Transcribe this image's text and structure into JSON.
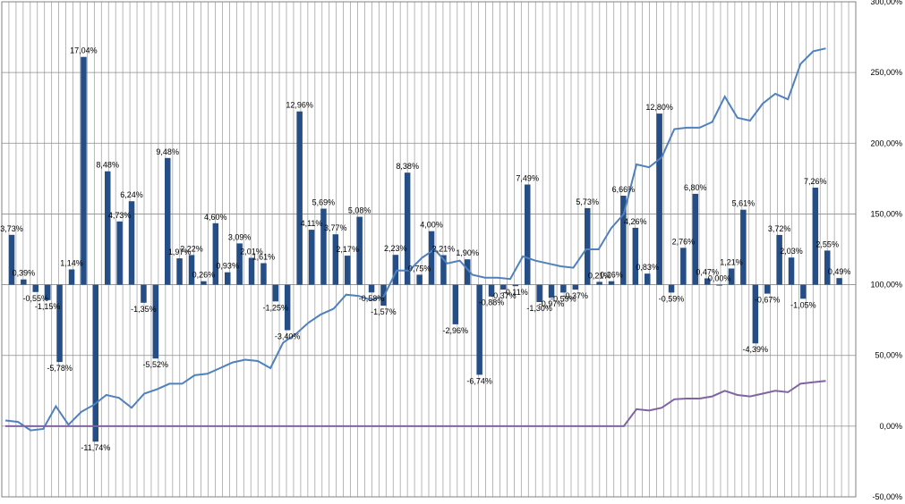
{
  "chart_data": {
    "type": "bar",
    "title": "",
    "xlabel": "",
    "ylabel": "",
    "grid": true,
    "ylim": [
      -50,
      300
    ],
    "yticks": [
      -50,
      0,
      50,
      100,
      150,
      200,
      250,
      300
    ],
    "ytick_labels": [
      "-50,00%",
      "0,00%",
      "50,00%",
      "100,00%",
      "150,00%",
      "200,00%",
      "250,00%",
      "300,00%"
    ],
    "y_axis_side": "right",
    "bar_color": "#254E87",
    "bar_baseline": 100,
    "series": [
      {
        "type": "bar",
        "values": [
          3.73,
          0.39,
          -0.55,
          -1.15,
          -5.78,
          1.14,
          17.04,
          -11.74,
          8.48,
          4.73,
          6.24,
          -1.35,
          -5.52,
          9.48,
          1.97,
          2.22,
          0.26,
          4.6,
          0.93,
          3.09,
          2.01,
          1.61,
          -1.25,
          -3.4,
          12.96,
          4.11,
          5.69,
          3.77,
          2.17,
          5.08,
          -0.58,
          -1.57,
          2.23,
          8.38,
          0.75,
          4.0,
          2.21,
          -2.96,
          1.9,
          -6.74,
          -0.88,
          -0.37,
          -0.11,
          7.49,
          -1.3,
          -0.97,
          -0.59,
          -0.37,
          5.73,
          0.21,
          0.26,
          6.66,
          4.26,
          0.83,
          12.8,
          -0.59,
          2.76,
          6.8,
          0.47,
          0.0,
          1.21,
          5.61,
          -4.39,
          -0.67,
          3.72,
          2.03,
          -1.05,
          7.26,
          2.55,
          0.49
        ],
        "labels": [
          "3,73%",
          "0,39%",
          "-0,55%",
          "-1,15%",
          "-5,78%",
          "1,14%",
          "17,04%",
          "-11,74%",
          "8,48%",
          "4,73%",
          "6,24%",
          "-1,35%",
          "-5,52%",
          "9,48%",
          "1,97%",
          "2,22%",
          "0,26%",
          "4,60%",
          "0,93%",
          "3,09%",
          "2,01%",
          "1,61%",
          "-1,25%",
          "-3,40%",
          "12,96%",
          "4,11%",
          "5,69%",
          "3,77%",
          "2,17%",
          "5,08%",
          "-0,58%",
          "-1,57%",
          "2,23%",
          "8,38%",
          "0,75%",
          "4,00%",
          "2,21%",
          "-2,96%",
          "1,90%",
          "-6,74%",
          "-0,88%",
          "-0,37%",
          "-0,11%",
          "7,49%",
          "-1,30%",
          "-0,97%",
          "-0,59%",
          "-0,37%",
          "5,73%",
          "0,21%",
          "0,26%",
          "6,66%",
          "4,26%",
          "0,83%",
          "12,80%",
          "-0,59%",
          "2,76%",
          "6,80%",
          "0,47%",
          "0,00%",
          "1,21%",
          "5,61%",
          "-4,39%",
          "-0,67%",
          "3,72%",
          "2,03%",
          "-1,05%",
          "7,26%",
          "2,55%",
          "0,49%"
        ]
      },
      {
        "type": "line",
        "color": "#4F81BD",
        "values": [
          4,
          3,
          -3,
          -2,
          14,
          1,
          10,
          15,
          22,
          20,
          13,
          23,
          26,
          30,
          30,
          36,
          37,
          41,
          45,
          47,
          46,
          41,
          59,
          65,
          73,
          79,
          83,
          93,
          92,
          89,
          92,
          110,
          110,
          119,
          125,
          115,
          117,
          107,
          105,
          105,
          104,
          120,
          117,
          115,
          113,
          112,
          125,
          125,
          140,
          150,
          185,
          183,
          190,
          210,
          211,
          211,
          215,
          233,
          218,
          216,
          228,
          235,
          231,
          256,
          265,
          267
        ]
      },
      {
        "type": "line",
        "color": "#8064A2",
        "values": [
          0,
          0,
          0,
          0,
          0,
          0,
          0,
          0,
          0,
          0,
          0,
          0,
          0,
          0,
          0,
          0,
          0,
          0,
          0,
          0,
          0,
          0,
          0,
          0,
          0,
          0,
          0,
          0,
          0,
          0,
          0,
          0,
          0,
          0,
          0,
          0,
          0,
          0,
          0,
          0,
          0,
          0,
          0,
          0,
          0,
          0,
          0,
          0,
          0,
          0,
          12,
          11,
          13,
          19,
          19.5,
          19.5,
          21,
          25,
          22,
          21,
          23,
          25,
          24,
          30,
          31,
          32
        ]
      }
    ]
  }
}
